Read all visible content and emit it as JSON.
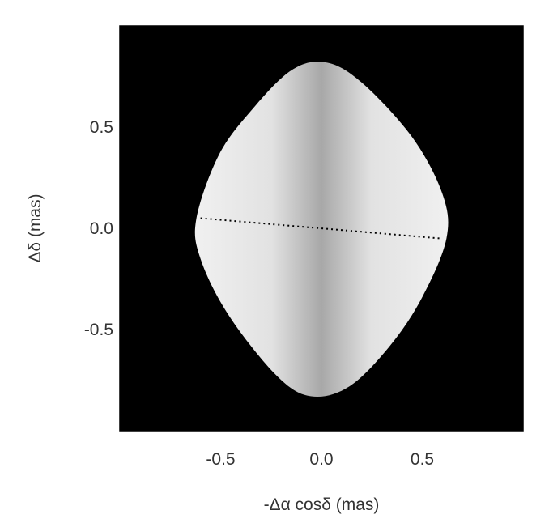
{
  "chart_data": {
    "type": "image",
    "description_free": true,
    "xlabel": "-Δα cosδ (mas)",
    "ylabel": "Δδ (mas)",
    "xlim": [
      -1.0,
      1.0
    ],
    "ylim": [
      -1.0,
      1.0
    ],
    "x_ticks": [
      {
        "value": -0.5,
        "label": "-0.5"
      },
      {
        "value": 0.0,
        "label": "0.0"
      },
      {
        "value": 0.5,
        "label": "0.5"
      }
    ],
    "y_ticks": [
      {
        "value": 0.5,
        "label": "0.5"
      },
      {
        "value": 0.0,
        "label": "0.0"
      },
      {
        "value": -0.5,
        "label": "-0.5"
      }
    ],
    "minor_tick_step": 0.1,
    "background_color": "#000000",
    "shape_outline": [
      {
        "x": 0.02,
        "y": 0.82
      },
      {
        "x": 0.2,
        "y": 0.72
      },
      {
        "x": 0.45,
        "y": 0.45
      },
      {
        "x": 0.6,
        "y": 0.17
      },
      {
        "x": 0.62,
        "y": -0.05
      },
      {
        "x": 0.5,
        "y": -0.34
      },
      {
        "x": 0.34,
        "y": -0.58
      },
      {
        "x": 0.14,
        "y": -0.78
      },
      {
        "x": -0.05,
        "y": -0.83
      },
      {
        "x": -0.22,
        "y": -0.73
      },
      {
        "x": -0.46,
        "y": -0.43
      },
      {
        "x": -0.6,
        "y": -0.15
      },
      {
        "x": -0.62,
        "y": 0.05
      },
      {
        "x": -0.51,
        "y": 0.36
      },
      {
        "x": -0.35,
        "y": 0.58
      },
      {
        "x": -0.15,
        "y": 0.78
      }
    ],
    "dotted_line": [
      {
        "x": -0.6,
        "y": 0.05
      },
      {
        "x": 0.59,
        "y": -0.05
      }
    ],
    "shading_colors": {
      "edge": "#f0f0f0",
      "center": "#a8a8a8",
      "mid": "#e2e2e2"
    }
  }
}
